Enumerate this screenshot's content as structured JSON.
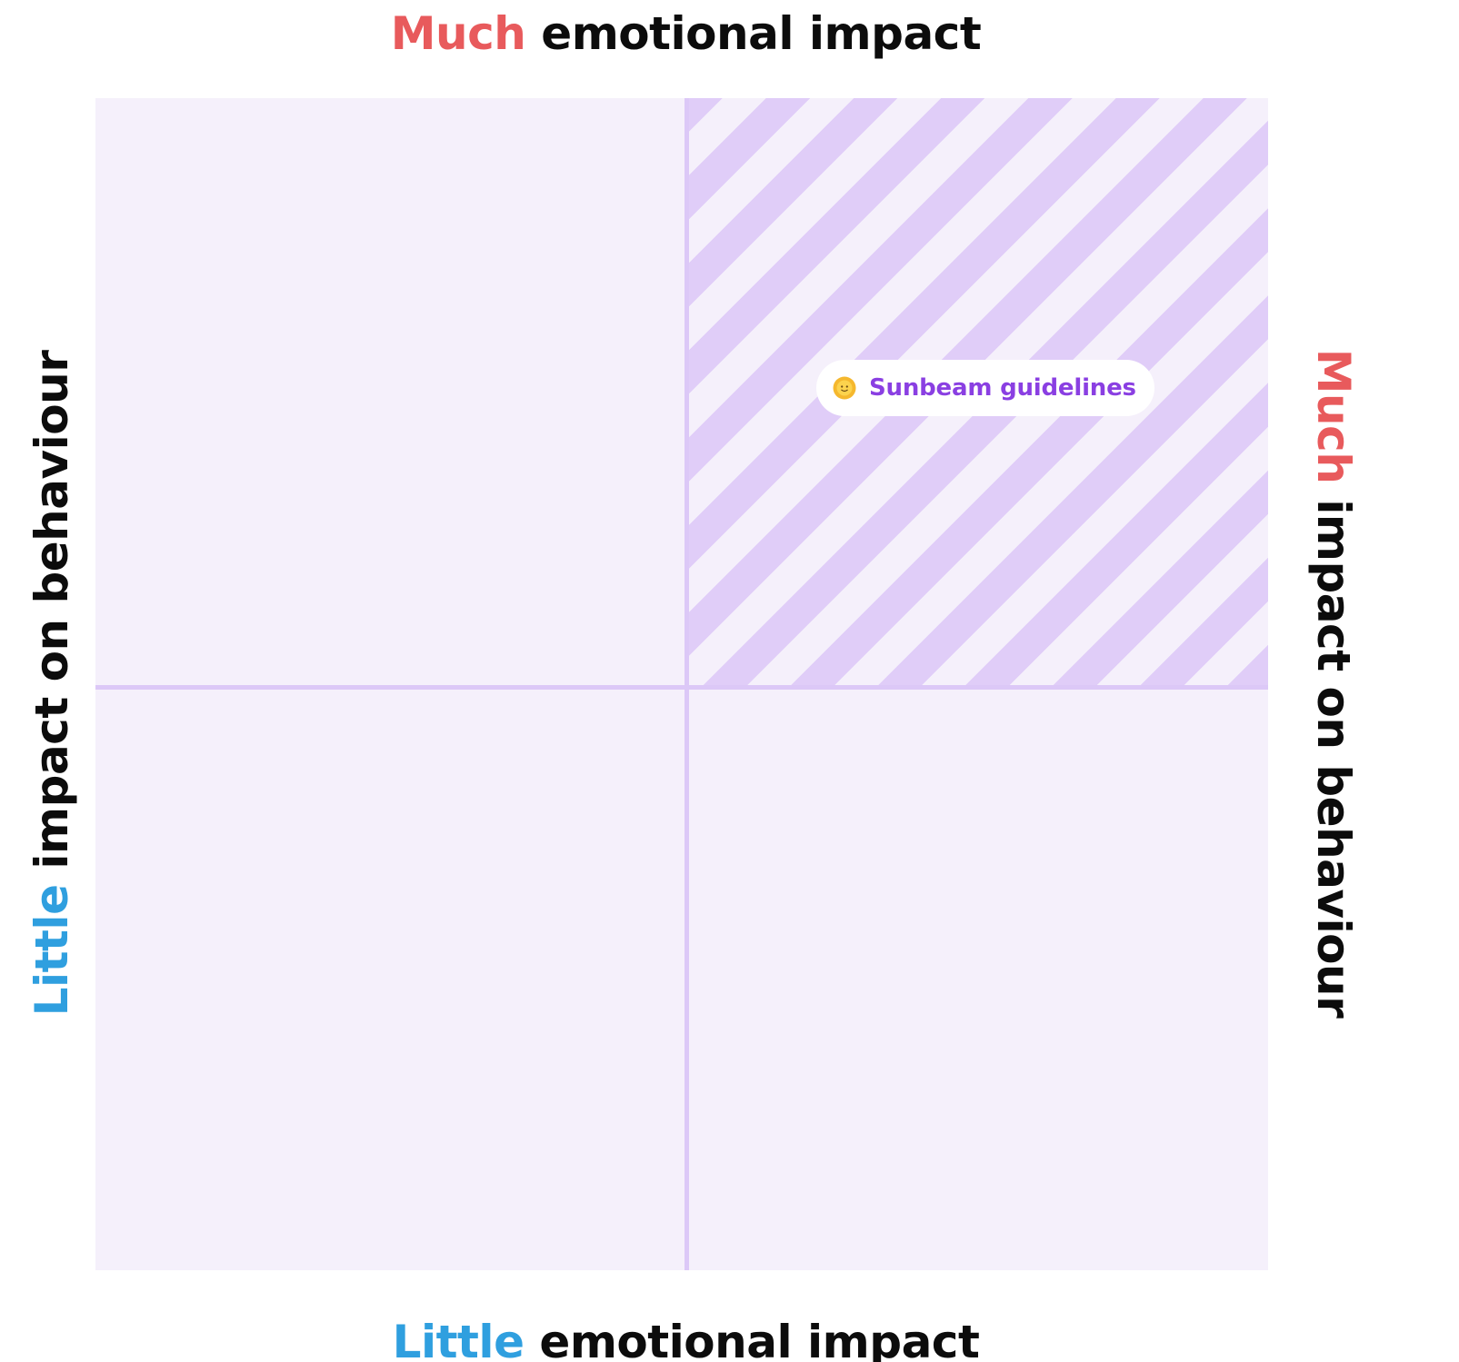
{
  "axes": {
    "top": {
      "emphasis": "Much",
      "rest": "emotional impact"
    },
    "bottom": {
      "emphasis": "Little",
      "rest": "emotional impact"
    },
    "left": {
      "emphasis": "Little",
      "rest": "impact on behaviour"
    },
    "right": {
      "emphasis": "Much",
      "rest": "impact on behaviour"
    }
  },
  "item": {
    "label": "Sunbeam guidelines",
    "icon": "sun-with-face-icon",
    "quadrant": "much emotional impact / much impact on behaviour"
  },
  "colors": {
    "much": "#e85a5c",
    "little": "#2f9fdf",
    "matrix_background": "#f5f0fb",
    "stripe": "#e0cdf8",
    "item_text": "#8a3fe2"
  }
}
